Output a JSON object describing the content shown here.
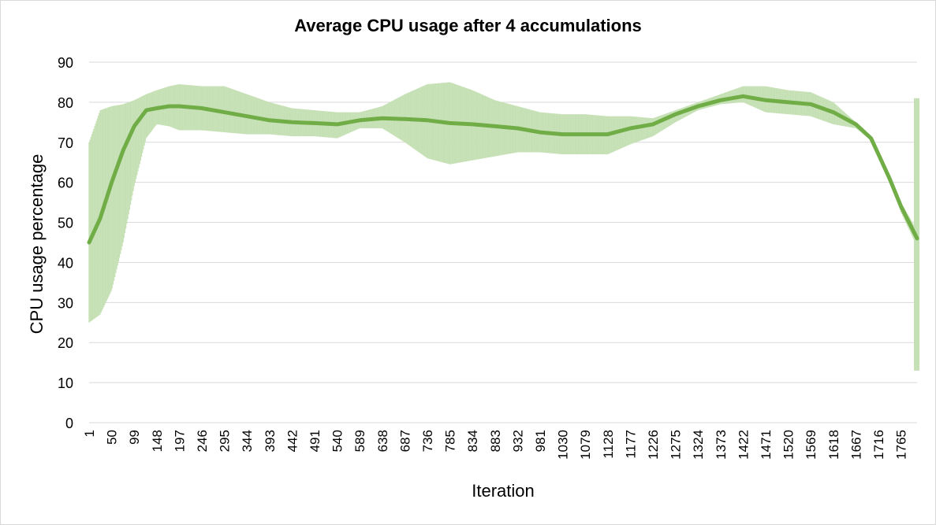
{
  "chart_data": {
    "type": "line",
    "title": "Average CPU usage after 4 accumulations",
    "xlabel": "Iteration",
    "ylabel": "CPU usage percentage",
    "ylim": [
      0,
      90
    ],
    "yticks": [
      0,
      10,
      20,
      30,
      40,
      50,
      60,
      70,
      80,
      90
    ],
    "xlim": [
      1,
      1800
    ],
    "xticks": [
      1,
      50,
      99,
      148,
      197,
      246,
      295,
      344,
      393,
      442,
      491,
      540,
      589,
      638,
      687,
      736,
      785,
      834,
      883,
      932,
      981,
      1030,
      1079,
      1128,
      1177,
      1226,
      1275,
      1324,
      1373,
      1422,
      1471,
      1520,
      1569,
      1618,
      1667,
      1716,
      1765
    ],
    "grid": "horizontal",
    "colors": {
      "line": "#70ad47",
      "band": "#c5e0b4",
      "grid": "#d9d9d9"
    },
    "series": [
      {
        "x": [
          1,
          25,
          50,
          75,
          99,
          125,
          148,
          175,
          197,
          246,
          295,
          344,
          393,
          442,
          491,
          540,
          589,
          638,
          687,
          736,
          785,
          834,
          883,
          932,
          981,
          1030,
          1079,
          1128,
          1177,
          1226,
          1275,
          1324,
          1373,
          1422,
          1471,
          1520,
          1569,
          1618,
          1667,
          1700,
          1716,
          1740,
          1765,
          1800
        ],
        "values": [
          45,
          51,
          60,
          68,
          74,
          78,
          78.5,
          79,
          79,
          78.5,
          77.5,
          76.5,
          75.5,
          75,
          74.8,
          74.5,
          75.5,
          76,
          75.8,
          75.5,
          74.8,
          74.5,
          74,
          73.5,
          72.5,
          72,
          72,
          72,
          73.5,
          74.5,
          77,
          79,
          80.5,
          81.5,
          80.5,
          80,
          79.5,
          77.5,
          74.5,
          71,
          67,
          61,
          54,
          46
        ],
        "upper": [
          70,
          78,
          79,
          79.5,
          80.5,
          82,
          83,
          84,
          84.5,
          84,
          84,
          82,
          80,
          78.5,
          78,
          77.5,
          77.5,
          79,
          82,
          84.5,
          85,
          83,
          80.5,
          79,
          77.5,
          77,
          77,
          76.5,
          76.5,
          76,
          78,
          80,
          82,
          84,
          84,
          83,
          82.5,
          80,
          75,
          71.5,
          67.5,
          62,
          55,
          48
        ],
        "lower": [
          25,
          27,
          33,
          45,
          59,
          71,
          74.5,
          74,
          73,
          73,
          72.5,
          72,
          72,
          71.5,
          71.5,
          71,
          73.5,
          73.5,
          70,
          66,
          64.5,
          65.5,
          66.5,
          67.5,
          67.5,
          67,
          67,
          67,
          69.5,
          71.5,
          75,
          78,
          79.5,
          80,
          77.5,
          77,
          76.5,
          74.5,
          73.5,
          70.5,
          66.5,
          60.5,
          52.5,
          44
        ],
        "end_error": {
          "x": 1800,
          "low": 13,
          "high": 81
        }
      }
    ]
  }
}
